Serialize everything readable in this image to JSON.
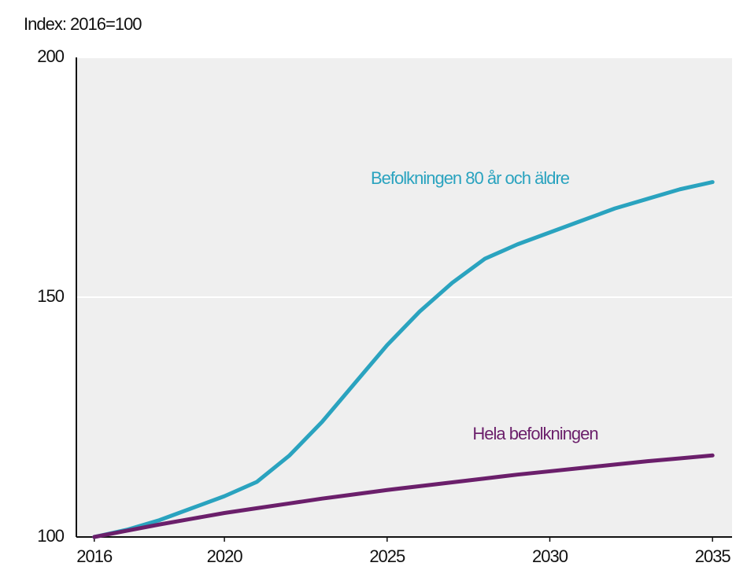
{
  "chart_data": {
    "type": "line",
    "title": "Index: 2016=100",
    "x": [
      2016,
      2017,
      2018,
      2019,
      2020,
      2021,
      2022,
      2023,
      2024,
      2025,
      2026,
      2027,
      2028,
      2029,
      2030,
      2031,
      2032,
      2033,
      2034,
      2035
    ],
    "series": [
      {
        "name": "Befolkningen 80 år och äldre",
        "color": "#2aa3bf",
        "values": [
          100,
          101.5,
          103.5,
          106,
          108.5,
          111.5,
          117,
          124,
          132,
          140,
          147,
          153,
          158,
          161,
          163.5,
          166,
          168.5,
          170.5,
          172.5,
          174
        ]
      },
      {
        "name": "Hela befolkningen",
        "color": "#6b1f6b",
        "values": [
          100,
          101.3,
          102.6,
          103.8,
          105,
          106,
          107,
          108,
          108.9,
          109.8,
          110.6,
          111.4,
          112.2,
          113,
          113.7,
          114.4,
          115.1,
          115.8,
          116.4,
          117
        ]
      }
    ],
    "xlim": [
      2015.45,
      2035.6
    ],
    "xticks": [
      2016,
      2020,
      2025,
      2030,
      2035
    ],
    "ylim": [
      100,
      200
    ],
    "yticks": [
      100,
      150,
      200
    ],
    "grid": true
  }
}
